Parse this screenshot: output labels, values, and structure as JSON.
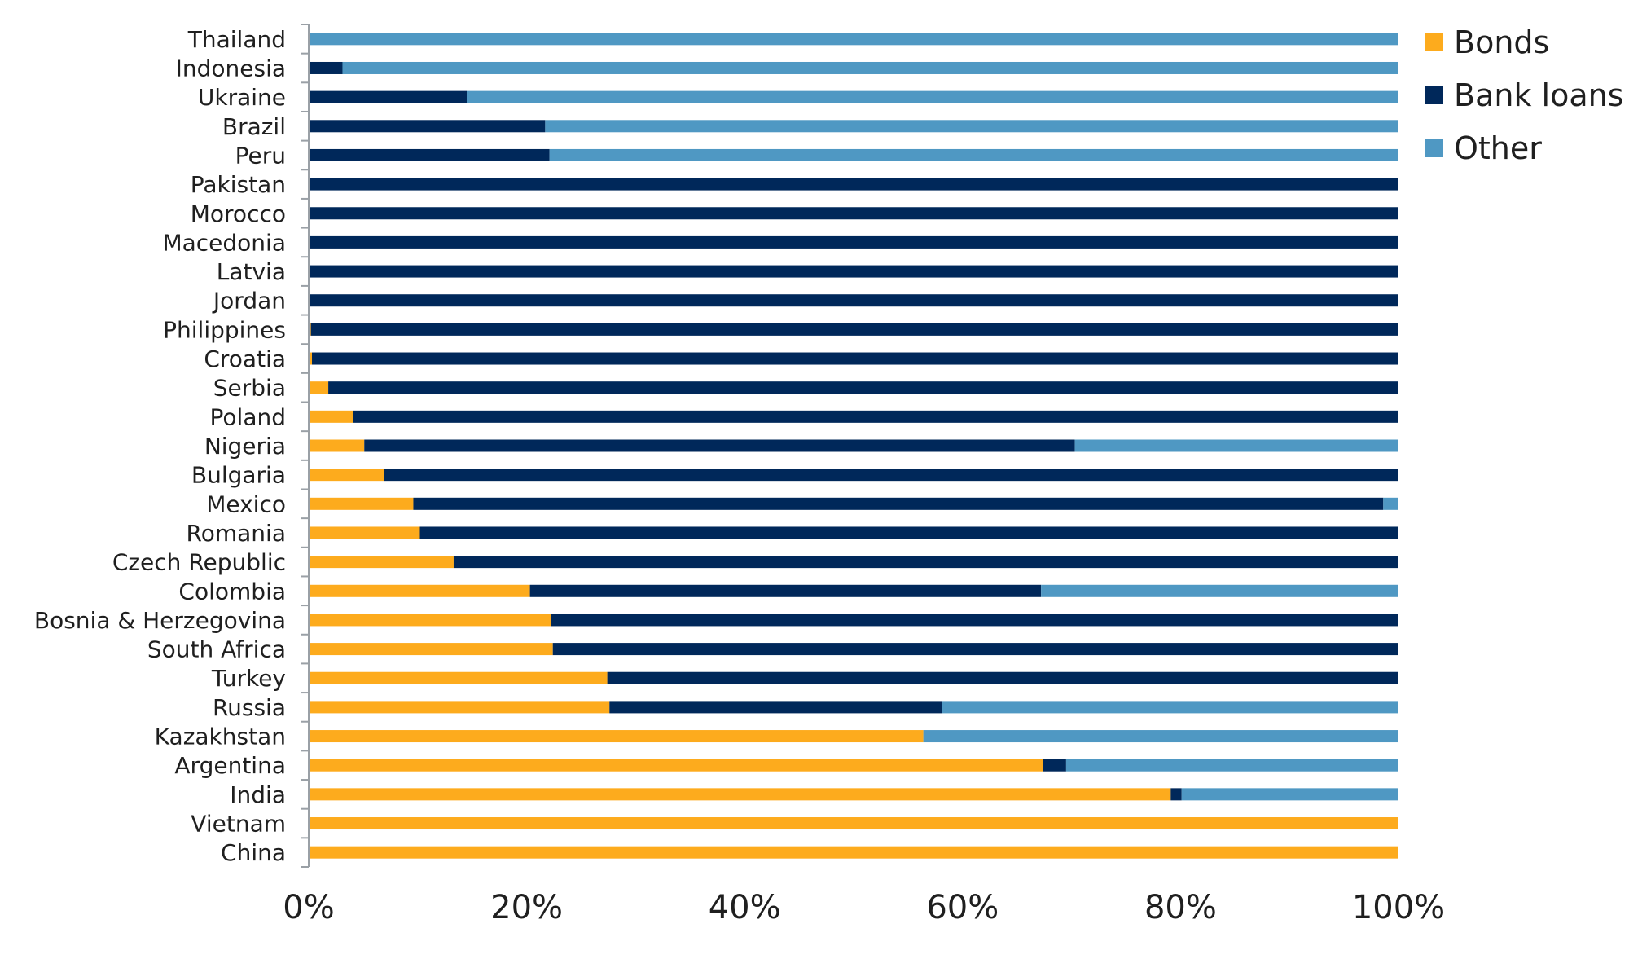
{
  "chart_data": {
    "type": "bar",
    "orientation": "horizontal",
    "stacked": true,
    "percent_stacked": true,
    "categories": [
      "Thailand",
      "Indonesia",
      "Ukraine",
      "Brazil",
      "Peru",
      "Pakistan",
      "Morocco",
      "Macedonia",
      "Latvia",
      "Jordan",
      "Philippines",
      "Croatia",
      "Serbia",
      "Poland",
      "Nigeria",
      "Bulgaria",
      "Mexico",
      "Romania",
      "Czech Republic",
      "Colombia",
      "Bosnia & Herzegovina",
      "South Africa",
      "Turkey",
      "Russia",
      "Kazakhstan",
      "Argentina",
      "India",
      "Vietnam",
      "China"
    ],
    "series": [
      {
        "name": "Bonds",
        "color": "#fdab1d",
        "values": [
          0,
          0,
          0,
          0,
          0,
          0,
          0,
          0,
          0,
          0,
          0.2,
          0.3,
          1.8,
          4.1,
          5.1,
          6.9,
          9.6,
          10.2,
          13.3,
          20.3,
          22.2,
          22.4,
          27.4,
          27.6,
          56.4,
          67.4,
          79.1,
          100,
          100
        ]
      },
      {
        "name": "Bank loans",
        "color": "#00285a",
        "values": [
          0,
          3.1,
          14.5,
          21.7,
          22.1,
          100,
          100,
          100,
          100,
          100,
          99.8,
          99.7,
          98.2,
          95.9,
          65.2,
          93.1,
          89.0,
          89.8,
          86.7,
          46.9,
          77.8,
          77.6,
          72.6,
          30.5,
          0,
          2.1,
          1.0,
          0,
          0
        ]
      },
      {
        "name": "Other",
        "color": "#4f98c3",
        "values": [
          100,
          96.9,
          85.5,
          78.3,
          77.9,
          0,
          0,
          0,
          0,
          0,
          0,
          0,
          0,
          0,
          29.7,
          0,
          1.4,
          0,
          0,
          32.8,
          0,
          0,
          0,
          41.9,
          43.6,
          30.5,
          19.9,
          0,
          0
        ]
      }
    ],
    "xlim": [
      0,
      100
    ],
    "xticks": [
      "0%",
      "20%",
      "40%",
      "60%",
      "80%",
      "100%"
    ],
    "legend_position": "top-right",
    "grid": false,
    "axis_color": "#9aa0a6"
  }
}
